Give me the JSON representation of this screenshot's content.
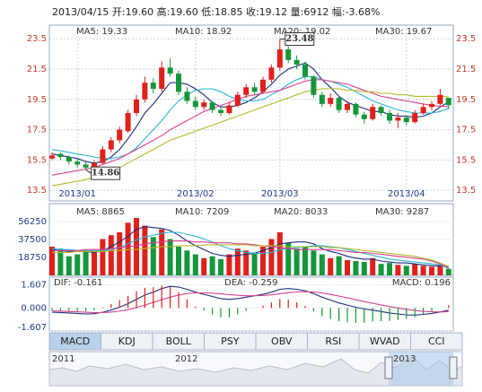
{
  "chart_data": {
    "type": "candlestick",
    "header": "2013/04/15 开:19.60 高:19.60 低:18.85 收:19.12 量:6912 幅:-3.68%",
    "ylim": [
      12.8,
      24.4
    ],
    "yticks": [
      13.5,
      15.5,
      17.5,
      19.5,
      21.5,
      23.5
    ],
    "grid": true,
    "up_color": "#e0201b",
    "down_color": "#16963a",
    "xlabels": [
      {
        "index": 3,
        "label": "2013/01"
      },
      {
        "index": 17,
        "label": "2013/02"
      },
      {
        "index": 27,
        "label": "2013/03"
      },
      {
        "index": 42,
        "label": "2013/04"
      }
    ],
    "candles": [
      [
        15.6,
        16.0,
        15.5,
        15.8
      ],
      [
        15.9,
        16.0,
        15.5,
        15.7
      ],
      [
        15.7,
        15.8,
        15.2,
        15.4
      ],
      [
        15.4,
        15.6,
        15.0,
        15.2
      ],
      [
        15.2,
        15.4,
        14.86,
        15.0
      ],
      [
        15.0,
        15.5,
        14.9,
        15.3
      ],
      [
        15.3,
        16.4,
        15.2,
        16.2
      ],
      [
        16.2,
        17.0,
        16.0,
        16.8
      ],
      [
        16.8,
        17.7,
        16.6,
        17.5
      ],
      [
        17.4,
        18.8,
        17.3,
        18.6
      ],
      [
        18.6,
        19.8,
        18.4,
        19.5
      ],
      [
        19.5,
        21.0,
        19.3,
        20.6
      ],
      [
        20.6,
        20.9,
        19.9,
        20.2
      ],
      [
        20.2,
        22.0,
        20.0,
        21.6
      ],
      [
        21.6,
        22.2,
        21.0,
        21.2
      ],
      [
        21.2,
        21.4,
        19.8,
        20.0
      ],
      [
        20.0,
        20.3,
        19.2,
        19.4
      ],
      [
        19.4,
        19.7,
        18.8,
        19.0
      ],
      [
        19.0,
        19.5,
        18.8,
        19.3
      ],
      [
        19.3,
        19.4,
        18.6,
        18.8
      ],
      [
        18.8,
        19.0,
        18.4,
        18.6
      ],
      [
        18.6,
        19.3,
        18.5,
        19.1
      ],
      [
        19.1,
        20.0,
        19.0,
        19.8
      ],
      [
        19.8,
        20.5,
        19.6,
        20.3
      ],
      [
        20.3,
        20.6,
        19.8,
        20.0
      ],
      [
        20.0,
        21.0,
        19.9,
        20.8
      ],
      [
        20.8,
        21.8,
        20.6,
        21.6
      ],
      [
        21.6,
        23.48,
        21.4,
        22.8
      ],
      [
        22.8,
        23.0,
        21.9,
        22.1
      ],
      [
        22.1,
        22.4,
        21.5,
        21.8
      ],
      [
        21.8,
        22.0,
        20.8,
        21.0
      ],
      [
        21.0,
        21.1,
        19.6,
        19.8
      ],
      [
        19.8,
        20.0,
        19.0,
        19.2
      ],
      [
        19.2,
        19.9,
        19.0,
        19.6
      ],
      [
        19.6,
        19.7,
        18.6,
        18.8
      ],
      [
        18.8,
        19.4,
        18.6,
        19.2
      ],
      [
        19.2,
        19.3,
        18.3,
        18.5
      ],
      [
        18.5,
        18.7,
        17.9,
        18.2
      ],
      [
        18.2,
        19.2,
        18.1,
        19.0
      ],
      [
        19.0,
        19.1,
        18.4,
        18.6
      ],
      [
        18.6,
        18.8,
        17.9,
        18.1
      ],
      [
        18.1,
        18.6,
        17.6,
        18.3
      ],
      [
        18.3,
        18.4,
        17.8,
        18.0
      ],
      [
        18.0,
        18.8,
        17.9,
        18.6
      ],
      [
        18.6,
        19.2,
        18.5,
        19.0
      ],
      [
        19.0,
        19.4,
        18.8,
        19.2
      ],
      [
        19.2,
        20.2,
        19.1,
        19.8
      ],
      [
        19.6,
        19.6,
        18.85,
        19.12
      ]
    ],
    "series": [
      {
        "name": "MA5: 19.33",
        "color": "#1c2f7a",
        "values": [
          15.9,
          15.8,
          15.7,
          15.6,
          15.4,
          15.3,
          15.4,
          15.7,
          16.2,
          16.9,
          17.7,
          18.6,
          19.2,
          19.9,
          20.6,
          20.6,
          20.5,
          20.2,
          19.8,
          19.3,
          19.0,
          19.0,
          19.1,
          19.3,
          19.6,
          20.0,
          20.5,
          21.1,
          21.5,
          21.7,
          21.9,
          21.5,
          20.8,
          20.3,
          19.7,
          19.3,
          19.1,
          18.9,
          18.7,
          18.7,
          18.5,
          18.4,
          18.4,
          18.3,
          18.4,
          18.6,
          19.0,
          19.33
        ]
      },
      {
        "name": "MA10: 18.92",
        "color": "#2ab5d8",
        "values": [
          16.2,
          16.1,
          16.0,
          15.9,
          15.8,
          15.7,
          15.6,
          15.6,
          15.7,
          15.9,
          16.3,
          16.9,
          17.5,
          18.1,
          18.8,
          19.4,
          19.8,
          20.1,
          20.2,
          20.2,
          20.0,
          19.7,
          19.5,
          19.4,
          19.4,
          19.5,
          19.8,
          20.1,
          20.5,
          20.8,
          21.0,
          21.0,
          20.8,
          20.7,
          20.5,
          20.3,
          20.0,
          19.7,
          19.4,
          19.2,
          19.0,
          18.8,
          18.7,
          18.6,
          18.6,
          18.6,
          18.7,
          18.92
        ]
      },
      {
        "name": "MA20: 19.02",
        "color": "#d9408f",
        "values": [
          14.5,
          14.6,
          14.7,
          14.8,
          14.9,
          15.0,
          15.2,
          15.4,
          15.6,
          15.9,
          16.2,
          16.5,
          16.8,
          17.1,
          17.5,
          17.8,
          18.1,
          18.4,
          18.7,
          18.9,
          19.1,
          19.3,
          19.5,
          19.7,
          19.8,
          19.9,
          20.0,
          20.1,
          20.3,
          20.5,
          20.7,
          20.8,
          20.8,
          20.7,
          20.6,
          20.5,
          20.3,
          20.1,
          19.9,
          19.7,
          19.6,
          19.5,
          19.4,
          19.3,
          19.2,
          19.1,
          19.05,
          19.02
        ]
      },
      {
        "name": "MA30: 19.67",
        "color": "#b5b82b",
        "values": [
          13.8,
          13.9,
          14.0,
          14.1,
          14.2,
          14.4,
          14.6,
          14.8,
          15.0,
          15.3,
          15.6,
          15.9,
          16.2,
          16.5,
          16.8,
          17.0,
          17.2,
          17.4,
          17.6,
          17.8,
          18.0,
          18.2,
          18.4,
          18.6,
          18.8,
          19.0,
          19.2,
          19.4,
          19.6,
          19.8,
          20.0,
          20.1,
          20.2,
          20.2,
          20.2,
          20.1,
          20.1,
          20.0,
          20.0,
          19.9,
          19.9,
          19.8,
          19.8,
          19.7,
          19.7,
          19.7,
          19.7,
          19.67
        ]
      }
    ],
    "annotations": [
      {
        "index": 27,
        "value": 23.48
      },
      {
        "index": 4,
        "value": 14.86
      }
    ],
    "volume": {
      "type": "bar",
      "ylim": [
        0,
        75000
      ],
      "yticks": [
        18750,
        37500,
        56250
      ],
      "values": [
        30000,
        28000,
        20000,
        22000,
        26000,
        24000,
        38000,
        42000,
        45000,
        55000,
        60000,
        52000,
        40000,
        48000,
        38000,
        30000,
        26000,
        22000,
        18000,
        20000,
        17000,
        22000,
        28000,
        26000,
        24000,
        30000,
        38000,
        45000,
        34000,
        28000,
        30000,
        26000,
        22000,
        18000,
        20000,
        16000,
        15000,
        14000,
        18000,
        12000,
        13000,
        11000,
        10000,
        12000,
        10000,
        9000,
        11000,
        6912
      ],
      "series": [
        {
          "name": "MA5: 8865",
          "color": "#1c2f7a",
          "values": [
            27000,
            26000,
            25000,
            25000,
            25000,
            24000,
            26000,
            30000,
            35000,
            41000,
            48000,
            51000,
            50000,
            49000,
            47000,
            42000,
            36000,
            31000,
            27000,
            23000,
            21000,
            20000,
            21000,
            22000,
            23000,
            26000,
            29000,
            33000,
            34000,
            35000,
            35000,
            33000,
            28000,
            25000,
            23000,
            20000,
            18000,
            17000,
            17000,
            15000,
            14000,
            13000,
            13000,
            12000,
            11000,
            10000,
            10000,
            8865
          ]
        },
        {
          "name": "MA10: 7209",
          "color": "#2ab5d8",
          "values": [
            28000,
            27000,
            27000,
            26000,
            26000,
            26000,
            26000,
            27000,
            29000,
            33000,
            37000,
            40000,
            42000,
            44000,
            45000,
            45000,
            43000,
            41000,
            38000,
            35000,
            31000,
            28000,
            26000,
            24000,
            23000,
            23000,
            24000,
            27000,
            28000,
            29000,
            30000,
            31000,
            31000,
            30000,
            29000,
            27000,
            25000,
            23000,
            21000,
            19000,
            17000,
            16000,
            15000,
            14000,
            13000,
            12000,
            11000,
            7209
          ]
        },
        {
          "name": "MA20: 8033",
          "color": "#d9408f",
          "values": [
            26000,
            26000,
            26000,
            26000,
            27000,
            27000,
            27000,
            28000,
            29000,
            30000,
            31000,
            33000,
            34000,
            35000,
            36000,
            36000,
            36000,
            35000,
            35000,
            34000,
            34000,
            34000,
            33000,
            33000,
            32000,
            31000,
            30000,
            29000,
            28000,
            27000,
            27000,
            27000,
            27000,
            27000,
            26000,
            25000,
            24000,
            24000,
            23000,
            22000,
            21000,
            20000,
            19000,
            18000,
            17000,
            15000,
            12000,
            8033
          ]
        },
        {
          "name": "MA30: 9287",
          "color": "#b5b82b",
          "values": [
            24000,
            24000,
            24000,
            25000,
            25000,
            25000,
            25000,
            26000,
            26000,
            27000,
            27000,
            28000,
            29000,
            30000,
            30000,
            31000,
            31000,
            31000,
            32000,
            32000,
            32000,
            32000,
            32000,
            32000,
            31000,
            31000,
            31000,
            31000,
            30000,
            30000,
            30000,
            30000,
            30000,
            29000,
            29000,
            28000,
            27000,
            26000,
            25000,
            24000,
            23000,
            22000,
            21000,
            20000,
            18000,
            16000,
            13000,
            9287
          ]
        }
      ]
    },
    "macd": {
      "type": "macd",
      "ylim": [
        -1.607,
        2.14
      ],
      "yticks": [
        1.607,
        {
          "value": 0,
          "label": "0.000"
        },
        -1.607
      ],
      "series": [
        {
          "name": "DIF: -0.161",
          "style": "line",
          "color": "#1c2f7a",
          "values": [
            -0.3,
            -0.32,
            -0.35,
            -0.38,
            -0.42,
            -0.4,
            -0.3,
            -0.15,
            0.05,
            0.3,
            0.6,
            0.9,
            1.1,
            1.35,
            1.5,
            1.45,
            1.3,
            1.1,
            0.95,
            0.8,
            0.65,
            0.6,
            0.65,
            0.75,
            0.85,
            0.95,
            1.1,
            1.3,
            1.35,
            1.3,
            1.2,
            1.0,
            0.75,
            0.55,
            0.35,
            0.2,
            0.05,
            -0.08,
            -0.15,
            -0.25,
            -0.35,
            -0.42,
            -0.48,
            -0.5,
            -0.45,
            -0.38,
            -0.28,
            -0.161
          ]
        },
        {
          "name": "DEA: -0.259",
          "style": "line",
          "color": "#d9408f",
          "values": [
            -0.2,
            -0.22,
            -0.25,
            -0.27,
            -0.3,
            -0.32,
            -0.32,
            -0.29,
            -0.22,
            -0.12,
            0.02,
            0.2,
            0.38,
            0.57,
            0.75,
            0.9,
            1.0,
            1.05,
            1.05,
            1.03,
            0.98,
            0.93,
            0.88,
            0.85,
            0.85,
            0.87,
            0.91,
            0.99,
            1.06,
            1.11,
            1.13,
            1.11,
            1.04,
            0.94,
            0.82,
            0.7,
            0.57,
            0.44,
            0.32,
            0.21,
            0.1,
            0.0,
            -0.1,
            -0.18,
            -0.24,
            -0.27,
            -0.28,
            -0.259
          ]
        },
        {
          "name": "MACD: 0.196",
          "style": "bar",
          "values": [
            -0.2,
            -0.2,
            -0.2,
            -0.22,
            -0.24,
            -0.16,
            0.04,
            0.28,
            0.54,
            0.84,
            1.16,
            1.4,
            1.44,
            1.56,
            1.5,
            1.1,
            0.6,
            0.1,
            -0.2,
            -0.46,
            -0.66,
            -0.66,
            -0.46,
            -0.2,
            0.0,
            0.16,
            0.38,
            0.62,
            0.58,
            0.38,
            0.14,
            -0.22,
            -0.58,
            -0.78,
            -0.94,
            -1.0,
            -1.04,
            -1.04,
            -0.94,
            -0.92,
            -0.9,
            -0.84,
            -0.76,
            -0.64,
            -0.42,
            -0.22,
            0.0,
            0.196
          ]
        }
      ]
    },
    "tabs": [
      "MACD",
      "KDJ",
      "BOLL",
      "PSY",
      "OBV",
      "RSI",
      "WVAD",
      "CCI"
    ],
    "navigator": [
      "2011",
      "2012",
      "2013"
    ]
  }
}
